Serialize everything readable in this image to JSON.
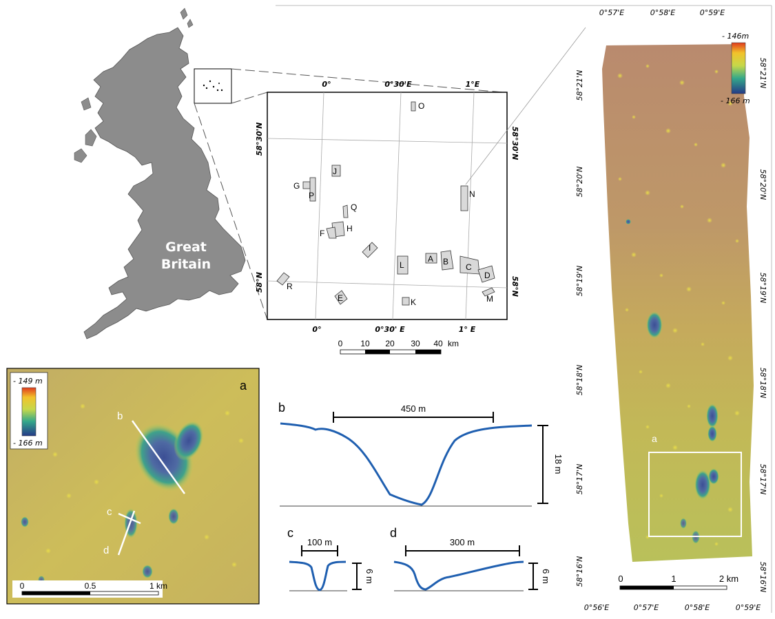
{
  "great_britain": {
    "label_line1": "Great",
    "label_line2": "Britain"
  },
  "overview_map": {
    "top_ticks": [
      "0°",
      "0°30'E",
      "1°E"
    ],
    "bottom_ticks": [
      "0°",
      "0°30' E",
      "1° E"
    ],
    "left_ticks": [
      "58°30'N",
      "58°N"
    ],
    "right_ticks": [
      "58°30'N",
      "58°N"
    ],
    "sites": [
      "O",
      "J",
      "G",
      "P",
      "Q",
      "H",
      "F",
      "I",
      "L",
      "A",
      "B",
      "C",
      "D",
      "N",
      "R",
      "E",
      "K",
      "M"
    ],
    "scalebar": {
      "ticks": [
        "0",
        "10",
        "20",
        "30",
        "40"
      ],
      "unit": "km"
    }
  },
  "detail_map": {
    "top_ticks": [
      "0°57'E",
      "0°58'E",
      "0°59'E"
    ],
    "bottom_ticks": [
      "0°56'E",
      "0°57'E",
      "0°58'E",
      "0°59'E"
    ],
    "left_ticks": [
      "58°21'N",
      "58°20'N",
      "58°19'N",
      "58°18'N",
      "58°17'N",
      "58°16'N"
    ],
    "right_ticks": [
      "58°21'N",
      "58°20'N",
      "58°19'N",
      "58°18'N",
      "58°17'N",
      "58°16'N"
    ],
    "legend": {
      "max": "- 146m",
      "min": "- 166 m"
    },
    "inset_label": "a",
    "scalebar": {
      "ticks": [
        "0",
        "1",
        "2 km"
      ]
    }
  },
  "panel_a": {
    "label": "a",
    "legend": {
      "max": "- 149 m",
      "min": "- 166 m"
    },
    "profile_labels": [
      "b",
      "c",
      "d"
    ],
    "scalebar": {
      "ticks": [
        "0",
        "0.5",
        "1 km"
      ]
    }
  },
  "profiles": {
    "b": {
      "label": "b",
      "width": "450 m",
      "height": "18 m"
    },
    "c": {
      "label": "c",
      "width": "100 m",
      "height": "6 m"
    },
    "d": {
      "label": "d",
      "width": "300 m",
      "height": "6 m"
    }
  },
  "colors": {
    "map_high": "#b98a6e",
    "map_mid": "#c9b35e",
    "map_low": "#5a6a9e",
    "profile": "#1f5fb0",
    "land": "#8c8c8c",
    "site": "#d9d9d9"
  }
}
